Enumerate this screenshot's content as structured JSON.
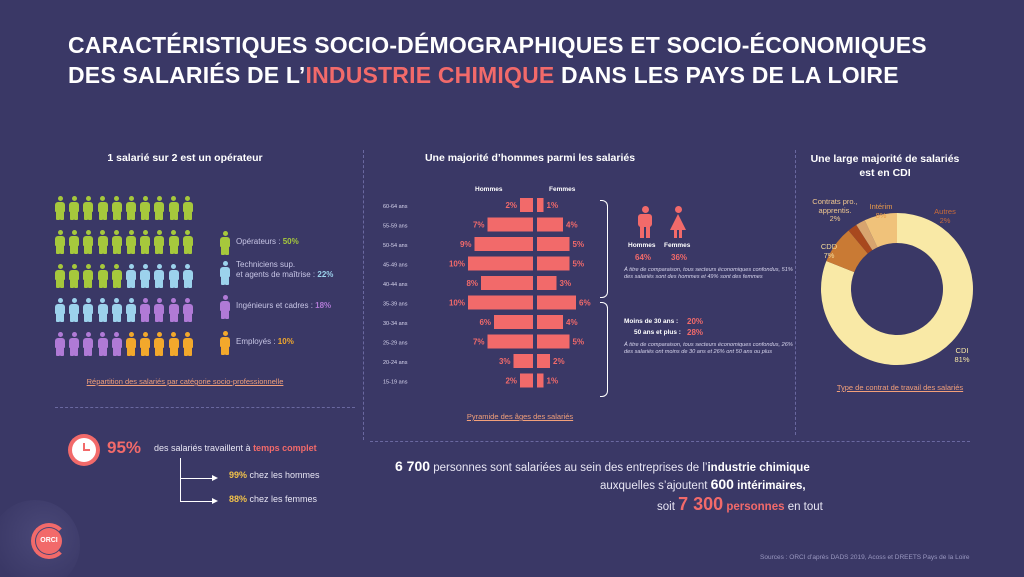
{
  "title": {
    "line1": "CARACTÉRISTIQUES SOCIO-DÉMOGRAPHIQUES ET SOCIO-ÉCONOMIQUES",
    "line2_prefix": "DES SALARIÉS DE L’",
    "line2_highlight": "INDUSTRIE CHIMIQUE",
    "line2_suffix": " DANS LES PAYS DE LA LOIRE"
  },
  "colors": {
    "background": "#3a3866",
    "accent": "#f26a6a",
    "operateurs": "#a6c83c",
    "techniciens": "#9cd2ec",
    "ingenieurs": "#b07ad6",
    "employes": "#f2a82c",
    "bars": "#f26a6a",
    "cdi": "#f9e9a6",
    "cdd": "#f0c27a",
    "contrats_pro": "#d8a46e",
    "interim": "#c97a34",
    "autres": "#a8481e"
  },
  "csp": {
    "heading": "1 salarié sur 2 est un opérateur",
    "link": "Répartition des salariés par catégorie socio-professionnelle",
    "legend": [
      {
        "label": "Opérateurs : ",
        "value": "50%",
        "color": "#a6c83c",
        "icon": "person-icon"
      },
      {
        "label": "Techniciens sup.",
        "label2": "et agents de maîtrise : ",
        "value": "22%",
        "color": "#9cd2ec",
        "icon": "person-icon"
      },
      {
        "label": "Ingénieurs et cadres : ",
        "value": "18%",
        "color": "#b07ad6",
        "icon": "person-icon"
      },
      {
        "label": "Employés : ",
        "value": "10%",
        "color": "#f2a82c",
        "icon": "person-icon"
      }
    ]
  },
  "temps": {
    "icon": "clock-icon",
    "value": "95%",
    "text": "des salariés travaillent à ",
    "text_bold": "temps complet",
    "hommes_value": "99%",
    "hommes_text": " chez les hommes",
    "femmes_value": "88%",
    "femmes_text": " chez les femmes"
  },
  "pyramid": {
    "heading": "Une majorité d’hommes parmi les salariés",
    "hommes_label": "Hommes",
    "femmes_label": "Femmes",
    "link": "Pyramide des âges des salariés",
    "note1_hommes_label": "Hommes",
    "note1_femmes_label": "Femmes",
    "note1_hommes_value": "64%",
    "note1_femmes_value": "36%",
    "note1_text": "À titre de comparaison, tous secteurs économiques confondus, 51% des salariés sont des hommes et 49% sont des femmes",
    "note2_line1": "Moins de 30 ans :",
    "note2_value1": "20%",
    "note2_line2": "50 ans et plus :",
    "note2_value2": "28%",
    "note2_text": "À titre de comparaison, tous secteurs économiques confondus, 26% des salariés ont moins de 30 ans et 26% ont 50 ans ou plus"
  },
  "contrat": {
    "heading1": "Une large majorité de salariés",
    "heading2": "est en CDI",
    "link": "Type de contrat de travail des salariés",
    "labels": {
      "cdi": "CDI",
      "cdi_v": "81%",
      "cdd": "CDD",
      "cdd_v": "7%",
      "pro": "Contrats pro.,",
      "pro2": "apprentis.",
      "pro_v": "2%",
      "interim": "Intérim",
      "interim_v": "8%",
      "autres": "Autres",
      "autres_v": "2%"
    }
  },
  "summary": {
    "n1": "6 700",
    "t1a": " personnes sont salariées au sein des entreprises de l’",
    "t1b": "industrie chimique",
    "t2a": "auxquelles s’ajoutent ",
    "n2": "600",
    "t2b": " intérimaires,",
    "t3a": "soit ",
    "n3": "7 300",
    "t3b": " personnes",
    "t3c": " en tout"
  },
  "logo": "ORCI",
  "sources": "Sources : ORCI d’après DADS 2019, Acoss et DREETS Pays de la Loire",
  "chart_data": [
    {
      "type": "bar",
      "title": "Une majorité d’hommes parmi les salariés",
      "orientation": "horizontal-pyramid",
      "categories": [
        "60-64 ans",
        "55-59 ans",
        "50-54 ans",
        "45-49 ans",
        "40-44 ans",
        "35-39 ans",
        "30-34 ans",
        "25-29 ans",
        "20-24 ans",
        "15-19 ans"
      ],
      "series": [
        {
          "name": "Hommes",
          "values": [
            2,
            7,
            9,
            10,
            8,
            10,
            6,
            7,
            3,
            2
          ]
        },
        {
          "name": "Femmes",
          "values": [
            1,
            4,
            5,
            5,
            3,
            6,
            4,
            5,
            2,
            1
          ]
        }
      ],
      "unit": "%"
    },
    {
      "type": "pie",
      "title": "Une large majorité de salariés est en CDI",
      "categories": [
        "CDI",
        "Intérim",
        "Autres",
        "Contrats pro., apprentis.",
        "CDD"
      ],
      "values": [
        81,
        8,
        2,
        2,
        7
      ],
      "unit": "%"
    },
    {
      "type": "bar",
      "title": "1 salarié sur 2 est un opérateur",
      "categories": [
        "Opérateurs",
        "Techniciens sup. et agents de maîtrise",
        "Ingénieurs et cadres",
        "Employés"
      ],
      "values": [
        50,
        22,
        18,
        10
      ],
      "unit": "%"
    }
  ]
}
